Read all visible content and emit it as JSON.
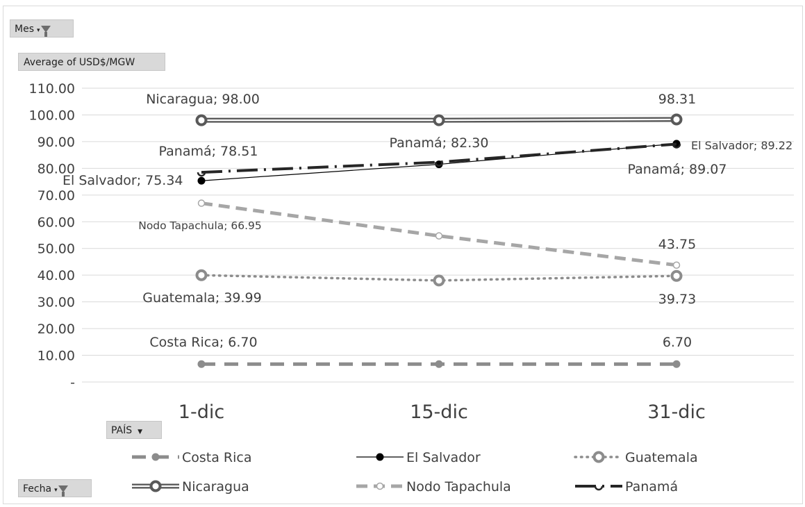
{
  "filters": {
    "mes_label": "Mes",
    "value_field_label": "Average of USD$/MGW",
    "pais_label": "PAÍS",
    "fecha_label": "Fecha"
  },
  "chart_data": {
    "type": "line",
    "title": "",
    "xlabel": "",
    "ylabel": "",
    "categories": [
      "1-dic",
      "15-dic",
      "31-dic"
    ],
    "ylim": [
      0,
      110
    ],
    "yticks": [
      "-",
      "10.00",
      "20.00",
      "30.00",
      "40.00",
      "50.00",
      "60.00",
      "70.00",
      "80.00",
      "90.00",
      "100.00",
      "110.00"
    ],
    "grid": true,
    "legend_position": "bottom",
    "series": [
      {
        "name": "Costa Rica",
        "values": [
          6.7,
          6.7,
          6.7
        ],
        "color": "#8c8c8c"
      },
      {
        "name": "El Salvador",
        "values": [
          75.34,
          81.5,
          89.22
        ],
        "color": "#000000"
      },
      {
        "name": "Guatemala",
        "values": [
          39.99,
          38.0,
          39.73
        ],
        "color": "#8c8c8c"
      },
      {
        "name": "Nicaragua",
        "values": [
          98.0,
          98.0,
          98.31
        ],
        "color": "#595959"
      },
      {
        "name": "Nodo Tapachula",
        "values": [
          66.95,
          54.7,
          43.75
        ],
        "color": "#a6a6a6"
      },
      {
        "name": "Panamá",
        "values": [
          78.51,
          82.3,
          89.07
        ],
        "color": "#262626"
      }
    ],
    "data_labels": [
      {
        "text": "Nicaragua;  98.00"
      },
      {
        "text": "98.31"
      },
      {
        "text": "Panamá;  78.51"
      },
      {
        "text": "Panamá;  82.30"
      },
      {
        "text": "El Salvador;  89.22"
      },
      {
        "text": "Panamá;  89.07"
      },
      {
        "text": "El Salvador;  75.34"
      },
      {
        "text": "Nodo Tapachula;  66.95"
      },
      {
        "text": "43.75"
      },
      {
        "text": "Guatemala;  39.99"
      },
      {
        "text": "39.73"
      },
      {
        "text": "Costa Rica;  6.70"
      },
      {
        "text": "6.70"
      }
    ]
  }
}
